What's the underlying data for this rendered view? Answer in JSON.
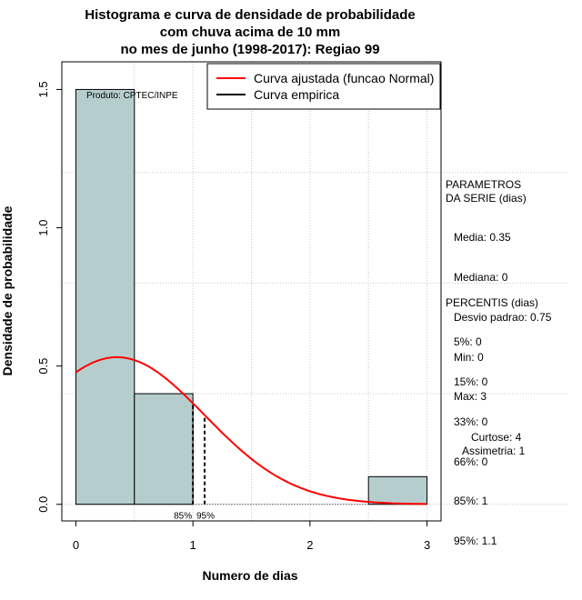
{
  "chart_data": {
    "type": "bar",
    "title": [
      "Histograma e curva de densidade de probabilidade",
      "com chuva acima de 10 mm",
      "no mes de junho (1998-2017): Regiao 99"
    ],
    "xlabel": "Numero de dias",
    "ylabel": "Densidade de probabilidade",
    "xlim": [
      -0.12,
      3.12
    ],
    "ylim": [
      -0.06,
      1.6
    ],
    "x_ticks": [
      "0",
      "1",
      "2",
      "3"
    ],
    "y_ticks": [
      "0.0",
      "0.5",
      "1.0",
      "1.5"
    ],
    "grid": true,
    "bins": [
      {
        "x0": 0.0,
        "x1": 0.5,
        "density": 1.5
      },
      {
        "x0": 0.5,
        "x1": 1.0,
        "density": 0.4
      },
      {
        "x0": 1.0,
        "x1": 1.5,
        "density": 0.0
      },
      {
        "x0": 1.5,
        "x1": 2.0,
        "density": 0.0
      },
      {
        "x0": 2.0,
        "x1": 2.5,
        "density": 0.0
      },
      {
        "x0": 2.5,
        "x1": 3.0,
        "density": 0.1
      }
    ],
    "fitted_curve": {
      "name": "Curva ajustada (funcao Normal)",
      "color": "#ff0000",
      "mean": 0.35,
      "sd": 0.75
    },
    "empirical_curve": {
      "name": "Curva empirica",
      "color": "#000000"
    },
    "percentile_lines": [
      {
        "label": "85%",
        "x": 1.0
      },
      {
        "label": "95%",
        "x": 1.1
      }
    ],
    "legend_position": "top-right",
    "annotation": "Produto: CPTEC/INPE",
    "bar_color": "#b5cecd"
  },
  "side_panel": {
    "params_title": "PARAMETROS\nDA SERIE (dias)",
    "params": [
      "Media: 0.35",
      "Mediana: 0",
      "Desvio padrao: 0.75",
      "Min: 0",
      "Max: 3"
    ],
    "percentis_title": "PERCENTIS (dias)",
    "percentis": [
      "5%: 0",
      "15%: 0",
      "33%: 0",
      "66%: 0",
      "85%: 1",
      "95%: 1.1"
    ],
    "curtose": "Curtose: 4",
    "assimetria": "Assimetria: 1"
  }
}
